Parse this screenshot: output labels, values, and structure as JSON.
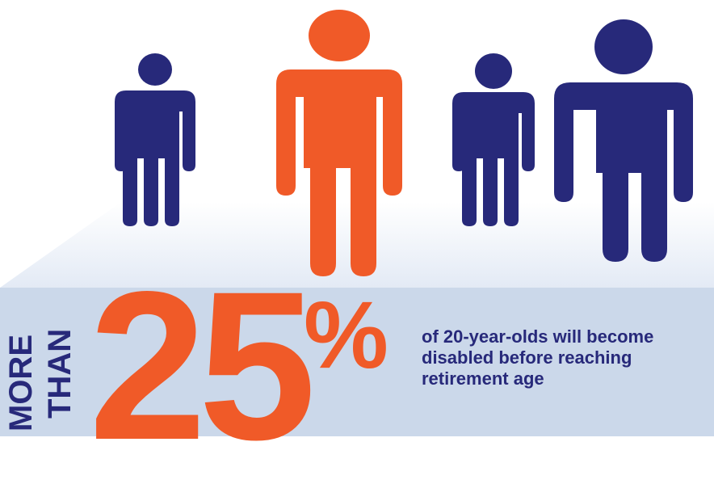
{
  "colors": {
    "navy": "#27297a",
    "orange": "#f05a28",
    "platform_top": "#e8eef7",
    "platform_front": "#cbd8ea"
  },
  "figures": [
    {
      "name": "person-1",
      "color": "navy"
    },
    {
      "name": "person-2",
      "color": "orange"
    },
    {
      "name": "person-3",
      "color": "navy"
    },
    {
      "name": "person-4",
      "color": "navy"
    }
  ],
  "stat": {
    "prefix_line1": "MORE",
    "prefix_line2": "THAN",
    "number": "25",
    "unit": "%",
    "caption": "of 20-year-olds will become disabled before reaching retirement age"
  }
}
